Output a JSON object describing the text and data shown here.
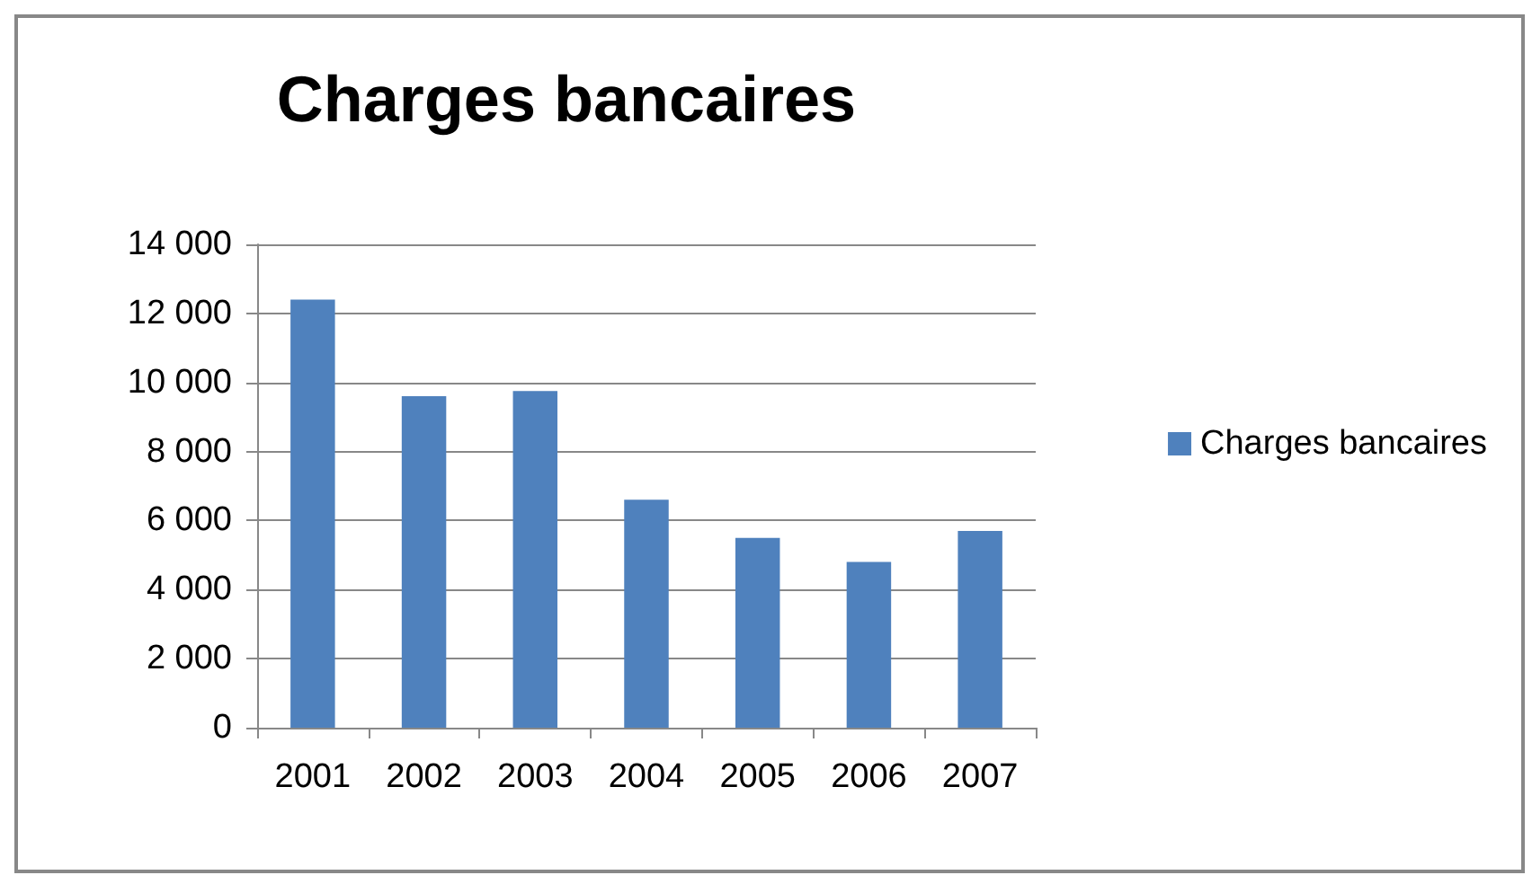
{
  "chart_data": {
    "type": "bar",
    "title": "Charges bancaires",
    "categories": [
      "2001",
      "2002",
      "2003",
      "2004",
      "2005",
      "2006",
      "2007"
    ],
    "series": [
      {
        "name": "Charges bancaires",
        "color": "#4f81bd",
        "values": [
          12400,
          9600,
          9750,
          6600,
          5500,
          4800,
          5700
        ]
      }
    ],
    "ylim": [
      0,
      14000
    ],
    "yticks": [
      0,
      {
        "value": 2000,
        "label": "2 000"
      },
      {
        "value": 4000,
        "label": "4 000"
      },
      {
        "value": 6000,
        "label": "6 000"
      },
      {
        "value": 8000,
        "label": "8 000"
      },
      {
        "value": 10000,
        "label": "10 000"
      },
      {
        "value": 12000,
        "label": "12 000"
      },
      {
        "value": 14000,
        "label": "14 000"
      }
    ],
    "grid": "y",
    "legend": "right"
  }
}
